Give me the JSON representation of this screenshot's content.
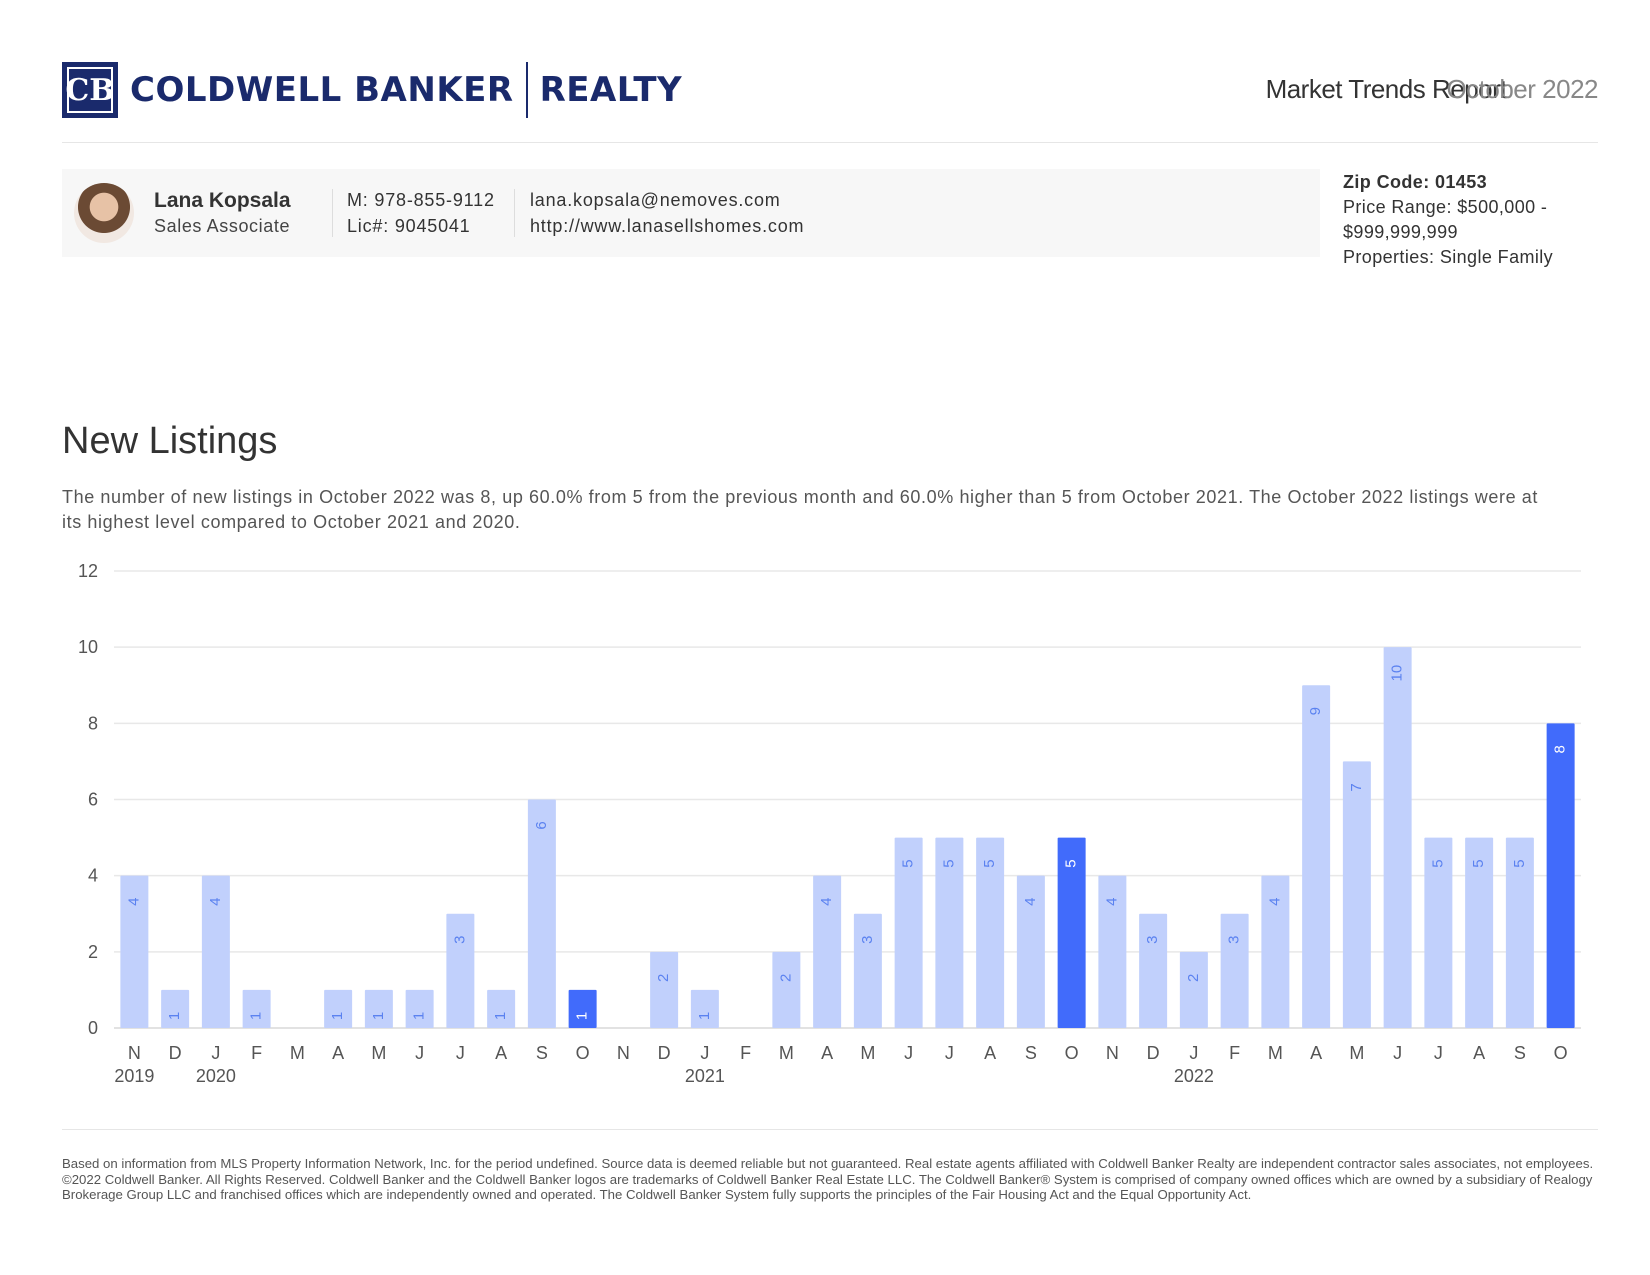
{
  "header": {
    "brand_left": "COLDWELL BANKER",
    "brand_right": "REALTY",
    "logo_mark": "CB",
    "report_title": "Market Trends Report",
    "report_date": "October 2022"
  },
  "agent": {
    "name": "Lana Kopsala",
    "role": "Sales Associate",
    "mobile": "M: 978-855-9112",
    "license": "Lic#: 9045041",
    "email": "lana.kopsala@nemoves.com",
    "website": "http://www.lanasellshomes.com"
  },
  "criteria": {
    "zip": "Zip Code: 01453",
    "price_range": "Price Range: $500,000 - $999,999,999",
    "properties": "Properties: Single Family"
  },
  "section": {
    "title": "New Listings",
    "description": "The number of new listings in October 2022 was 8, up 60.0% from 5 from the previous month and 60.0% higher than 5 from October 2021. The October 2022 listings were at its highest level compared to October 2021 and 2020."
  },
  "chart_data": {
    "type": "bar",
    "categories": [
      "N",
      "D",
      "J",
      "F",
      "M",
      "A",
      "M",
      "J",
      "J",
      "A",
      "S",
      "O",
      "N",
      "D",
      "J",
      "F",
      "M",
      "A",
      "M",
      "J",
      "J",
      "A",
      "S",
      "O",
      "N",
      "D",
      "J",
      "F",
      "M",
      "A",
      "M",
      "J",
      "J",
      "A",
      "S",
      "O"
    ],
    "year_labels": [
      {
        "index": 0,
        "label": "2019"
      },
      {
        "index": 2,
        "label": "2020"
      },
      {
        "index": 14,
        "label": "2021"
      },
      {
        "index": 26,
        "label": "2022"
      }
    ],
    "values": [
      4,
      1,
      4,
      1,
      0,
      1,
      1,
      1,
      3,
      1,
      6,
      1,
      0,
      2,
      1,
      0,
      2,
      4,
      3,
      5,
      5,
      5,
      4,
      5,
      4,
      3,
      2,
      3,
      4,
      9,
      7,
      10,
      5,
      5,
      5,
      8
    ],
    "highlight_indices": [
      11,
      23,
      35
    ],
    "ylim": [
      0,
      12
    ],
    "yticks": [
      0,
      2,
      4,
      6,
      8,
      10,
      12
    ],
    "grid": true,
    "colors": {
      "bar": "#c1d0fc",
      "highlight": "#416bfb",
      "label": "#5b82f0",
      "label_highlight": "#ffffff"
    }
  },
  "footer": {
    "disclaimer": "Based on information from MLS Property Information Network, Inc. for the period undefined. Source data is deemed reliable but not guaranteed. Real estate agents affiliated with Coldwell Banker Realty are independent contractor sales associates, not employees. ©2022 Coldwell Banker. All Rights Reserved. Coldwell Banker and the Coldwell Banker logos are trademarks of Coldwell Banker Real Estate LLC. The Coldwell Banker® System is comprised of company owned offices which are owned by a subsidiary of Realogy Brokerage Group LLC and franchised offices which are independently owned and operated. The Coldwell Banker System fully supports the principles of the Fair Housing Act and the Equal Opportunity Act."
  }
}
